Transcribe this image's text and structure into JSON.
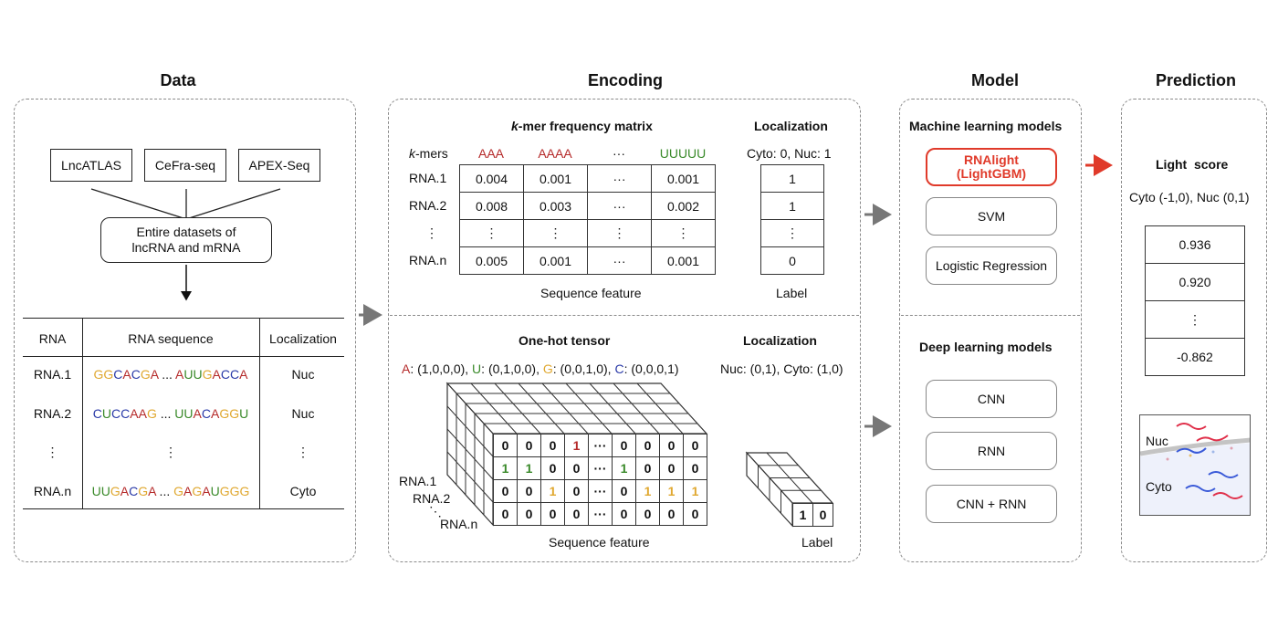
{
  "titles": {
    "data": "Data",
    "encoding": "Encoding",
    "model": "Model",
    "prediction": "Prediction"
  },
  "data_panel": {
    "sources": [
      "LncATLAS",
      "CeFra-seq",
      "APEX-Seq"
    ],
    "entire_box": {
      "line1": "Entire datasets of",
      "line2": "lncRNA and mRNA"
    },
    "table": {
      "headers": [
        "RNA",
        "RNA sequence",
        "Localization"
      ],
      "rows": [
        {
          "rna": "RNA.1",
          "seq_left": "GGCACGA",
          "ellipsis": " ... ",
          "seq_right": "AUUGACCA",
          "loc": "Nuc"
        },
        {
          "rna": "RNA.2",
          "seq_left": "CUCCAAG",
          "ellipsis": " ... ",
          "seq_right": "UUACAGGU",
          "loc": "Nuc"
        },
        {
          "rna": "⋮",
          "seq_left": "",
          "ellipsis": "⋮",
          "seq_right": "",
          "loc": "⋮"
        },
        {
          "rna": "RNA.n",
          "seq_left": "UUGACGA",
          "ellipsis": " ... ",
          "seq_right": "GAGAUGGG",
          "loc": "Cyto"
        }
      ]
    }
  },
  "kmer": {
    "title_k": "k",
    "title_rest": "-mer frequency matrix",
    "kmers_label": "k",
    "kmers_label_rest": "-mers",
    "columns": [
      "AAA",
      "AAAA",
      "···",
      "UUUUU"
    ],
    "rows": [
      {
        "name": "RNA.1",
        "values": [
          "0.004",
          "0.001",
          "···",
          "0.001"
        ],
        "label": "1"
      },
      {
        "name": "RNA.2",
        "values": [
          "0.008",
          "0.003",
          "···",
          "0.002"
        ],
        "label": "1"
      },
      {
        "name": "⋮",
        "values": [
          "⋮",
          "⋮",
          "⋮",
          "⋮"
        ],
        "label": "⋮"
      },
      {
        "name": "RNA.n",
        "values": [
          "0.005",
          "0.001",
          "···",
          "0.001"
        ],
        "label": "0"
      }
    ],
    "loc_title": "Localization",
    "loc_coding": "Cyto: 0, Nuc: 1",
    "seq_feature": "Sequence feature",
    "label": "Label"
  },
  "onehot": {
    "title": "One-hot tensor",
    "legend": [
      {
        "letter": "A",
        "code": ": (1,0,0,0), "
      },
      {
        "letter": "U",
        "code": ": (0,1,0,0), "
      },
      {
        "letter": "G",
        "code": ": (0,0,1,0), "
      },
      {
        "letter": "C",
        "code": ": (0,0,0,1)"
      }
    ],
    "loc_title": "Localization",
    "loc_coding": "Nuc: (0,1), Cyto: (1,0)",
    "matrix": [
      [
        "0",
        "0",
        "0",
        "1",
        "···",
        "0",
        "0",
        "0",
        "0"
      ],
      [
        "1",
        "1",
        "0",
        "0",
        "···",
        "1",
        "0",
        "0",
        "0"
      ],
      [
        "0",
        "0",
        "1",
        "0",
        "···",
        "0",
        "1",
        "1",
        "1"
      ],
      [
        "0",
        "0",
        "0",
        "0",
        "···",
        "0",
        "0",
        "0",
        "0"
      ]
    ],
    "rna_labels": [
      "RNA.1",
      "RNA.2",
      "⋱",
      "RNA.n"
    ],
    "label_values": [
      "1",
      "0"
    ],
    "seq_feature": "Sequence feature",
    "label": "Label"
  },
  "model": {
    "ml_title": "Machine learning models",
    "ml_models": [
      {
        "line1": "RNAlight",
        "line2": "(LightGBM)"
      },
      {
        "line1": "SVM",
        "line2": ""
      },
      {
        "line1": "Logistic Regression",
        "line2": ""
      }
    ],
    "dl_title": "Deep learning models",
    "dl_models": [
      "CNN",
      "RNN",
      "CNN + RNN"
    ]
  },
  "prediction": {
    "title": "Light  score",
    "range": "Cyto (-1,0), Nuc (0,1)",
    "scores": [
      "0.936",
      "0.920",
      "⋮",
      "-0.862"
    ],
    "cell_labels": {
      "nuc": "Nuc",
      "cyto": "Cyto"
    }
  },
  "colors": {
    "A": "#b52a2a",
    "U": "#3a8a2a",
    "G": "#e0a830",
    "C": "#2a3aa8",
    "highlight": "#e03a2a",
    "arrow_gray": "#777777",
    "arrow_red": "#e03a2a"
  }
}
